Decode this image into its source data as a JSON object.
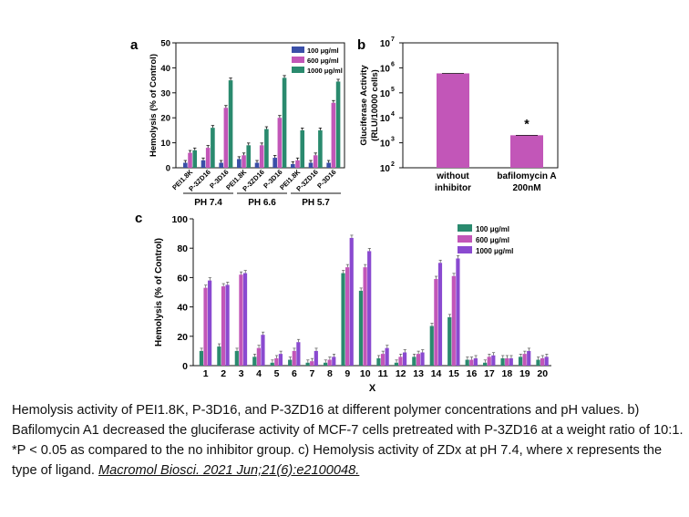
{
  "colors": {
    "blue": "#3a4fa8",
    "pink": "#c256b8",
    "green": "#2a8a6e",
    "purple": "#8a4ad0",
    "axis": "#111111"
  },
  "chart_data": [
    {
      "panel": "a",
      "type": "bar",
      "ylabel": "Hemolysis (% of Control)",
      "ylim": [
        0,
        50
      ],
      "yticks": [
        "0",
        "10",
        "20",
        "30",
        "40",
        "50"
      ],
      "categories": [
        "PEI1.8K",
        "P-3ZD16",
        "P-3D16",
        "PEI1.8K",
        "P-3ZD16",
        "P-3D16",
        "PEI1.8K",
        "P-3ZD16",
        "P-3D16"
      ],
      "groups": [
        {
          "label": "PH 7.4"
        },
        {
          "label": "PH 6.6"
        },
        {
          "label": "PH 5.7"
        }
      ],
      "legend": [
        "100 μg/ml",
        "600 μg/ml",
        "1000 μg/ml"
      ],
      "series": [
        {
          "name": "100 μg/ml",
          "color": "#3a4fa8",
          "values": [
            2,
            3,
            2,
            3.5,
            2,
            4,
            1.5,
            2,
            2
          ]
        },
        {
          "name": "600 μg/ml",
          "color": "#c256b8",
          "values": [
            6,
            8,
            24,
            5,
            9,
            20,
            3,
            5,
            26
          ]
        },
        {
          "name": "1000 μg/ml",
          "color": "#2a8a6e",
          "values": [
            7,
            16,
            35,
            9,
            15.5,
            36,
            15,
            15,
            34.5
          ]
        }
      ]
    },
    {
      "panel": "b",
      "type": "bar",
      "ylabel": "Gluciferase Activity",
      "ylabel2": "(RLU/10000 cells)",
      "yscale": "log",
      "ylim": [
        100,
        10000000
      ],
      "ytick_bases": [
        "10",
        "10",
        "10",
        "10",
        "10",
        "10"
      ],
      "ytick_exps": [
        "2",
        "3",
        "4",
        "5",
        "6",
        "7"
      ],
      "categories": [
        [
          "without",
          "inhibitor"
        ],
        [
          "bafilomycin A",
          "200nM"
        ]
      ],
      "values": [
        600000,
        2000
      ],
      "color": "#c256b8",
      "annotation": "*"
    },
    {
      "panel": "c",
      "type": "bar",
      "ylabel": "Hemolysis (% of Control)",
      "xlabel": "X",
      "ylim": [
        0,
        100
      ],
      "yticks": [
        "0",
        "20",
        "40",
        "60",
        "80",
        "100"
      ],
      "categories": [
        "1",
        "2",
        "3",
        "4",
        "5",
        "6",
        "7",
        "8",
        "9",
        "10",
        "11",
        "12",
        "13",
        "14",
        "15",
        "16",
        "17",
        "18",
        "19",
        "20"
      ],
      "legend": [
        "100 μg/ml",
        "600 μg/ml",
        "1000 μg/ml"
      ],
      "series": [
        {
          "name": "100 μg/ml",
          "color": "#2a8a6e",
          "values": [
            10,
            13,
            10,
            6,
            2,
            4,
            2,
            2,
            63,
            51,
            5,
            2,
            6,
            27,
            33,
            4,
            2,
            5,
            6,
            4
          ]
        },
        {
          "name": "600 μg/ml",
          "color": "#c256b8",
          "values": [
            53,
            54,
            62,
            12,
            5,
            10,
            3,
            4,
            67,
            67,
            8,
            6,
            8,
            59,
            61,
            4,
            6,
            5,
            8,
            5
          ]
        },
        {
          "name": "1000 μg/ml",
          "color": "#8a4ad0",
          "values": [
            58,
            55,
            63,
            21,
            8,
            16,
            10,
            6,
            87,
            78,
            12,
            9,
            9,
            70,
            73,
            5,
            7,
            5,
            10,
            6
          ]
        }
      ]
    }
  ],
  "panel_letters": [
    "a",
    "b",
    "c"
  ],
  "caption": {
    "text": "Hemolysis activity of PEI1.8K, P-3D16, and P-3ZD16 at different polymer concentrations and pH values. b) Bafilomycin A1 decreased the gluciferase activity of MCF-7 cells pretreated with P-3ZD16 at a weight ratio of 10:1. *P < 0.05 as compared to the no inhibitor group. c) Hemolysis activity of ZDx at pH 7.4, where x represents the type of ligand.",
    "citation": "Macromol Biosci. 2021 Jun;21(6):e2100048."
  }
}
